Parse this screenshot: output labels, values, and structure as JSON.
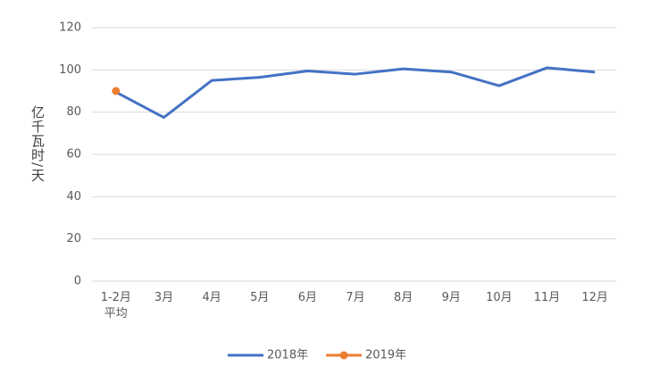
{
  "chart_data": {
    "type": "line",
    "y_label": "亿千瓦时/天",
    "categories": [
      "1-2月\n平均",
      "3月",
      "4月",
      "5月",
      "6月",
      "7月",
      "8月",
      "9月",
      "10月",
      "11月",
      "12月"
    ],
    "series": [
      {
        "name": "2018年",
        "color": "#4472c4",
        "values": [
          89.5,
          77.5,
          95,
          96.5,
          99.5,
          98,
          100.5,
          99,
          92.5,
          101,
          99
        ]
      },
      {
        "name": "2019年",
        "color": "#ed7d31",
        "values": [
          90,
          null,
          null,
          null,
          null,
          null,
          null,
          null,
          null,
          null,
          null
        ]
      }
    ],
    "ylim": [
      0,
      120
    ],
    "yticks": [
      0,
      20,
      40,
      60,
      80,
      100,
      120
    ],
    "grid": true,
    "legend": "bottom"
  }
}
